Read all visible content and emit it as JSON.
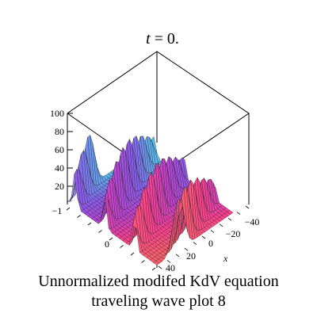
{
  "chart_data": {
    "type": "surface",
    "title": "t = 0.",
    "title_italic_var": "t",
    "title_rest": " = 0.",
    "xlabel": "x",
    "ylabel": "",
    "zlabel": "",
    "x_ticks": [
      "40",
      "20",
      "0",
      "−20",
      "−40"
    ],
    "x_tick_values": [
      40,
      20,
      0,
      -20,
      -40
    ],
    "y_ticks": [
      "−1",
      "0"
    ],
    "y_tick_values": [
      -1,
      0
    ],
    "z_ticks": [
      "20",
      "40",
      "60",
      "80",
      "100"
    ],
    "z_tick_values": [
      20,
      40,
      60,
      80,
      100
    ],
    "zlim": [
      0,
      100
    ],
    "xlim": [
      -50,
      50
    ],
    "ylim": [
      -1,
      1
    ],
    "wave": {
      "kind": "periodic traveling wave ridges",
      "ridge_count": 6,
      "peak_height": 60,
      "baseline": 0
    },
    "colormap": [
      "#3fe8e0",
      "#5ab8f0",
      "#8a5cf0",
      "#c040d0",
      "#ff3f90",
      "#ff5f6f"
    ]
  },
  "caption": {
    "line1": "Unnormalized modifed KdV equation",
    "line2": "traveling wave plot 8"
  }
}
